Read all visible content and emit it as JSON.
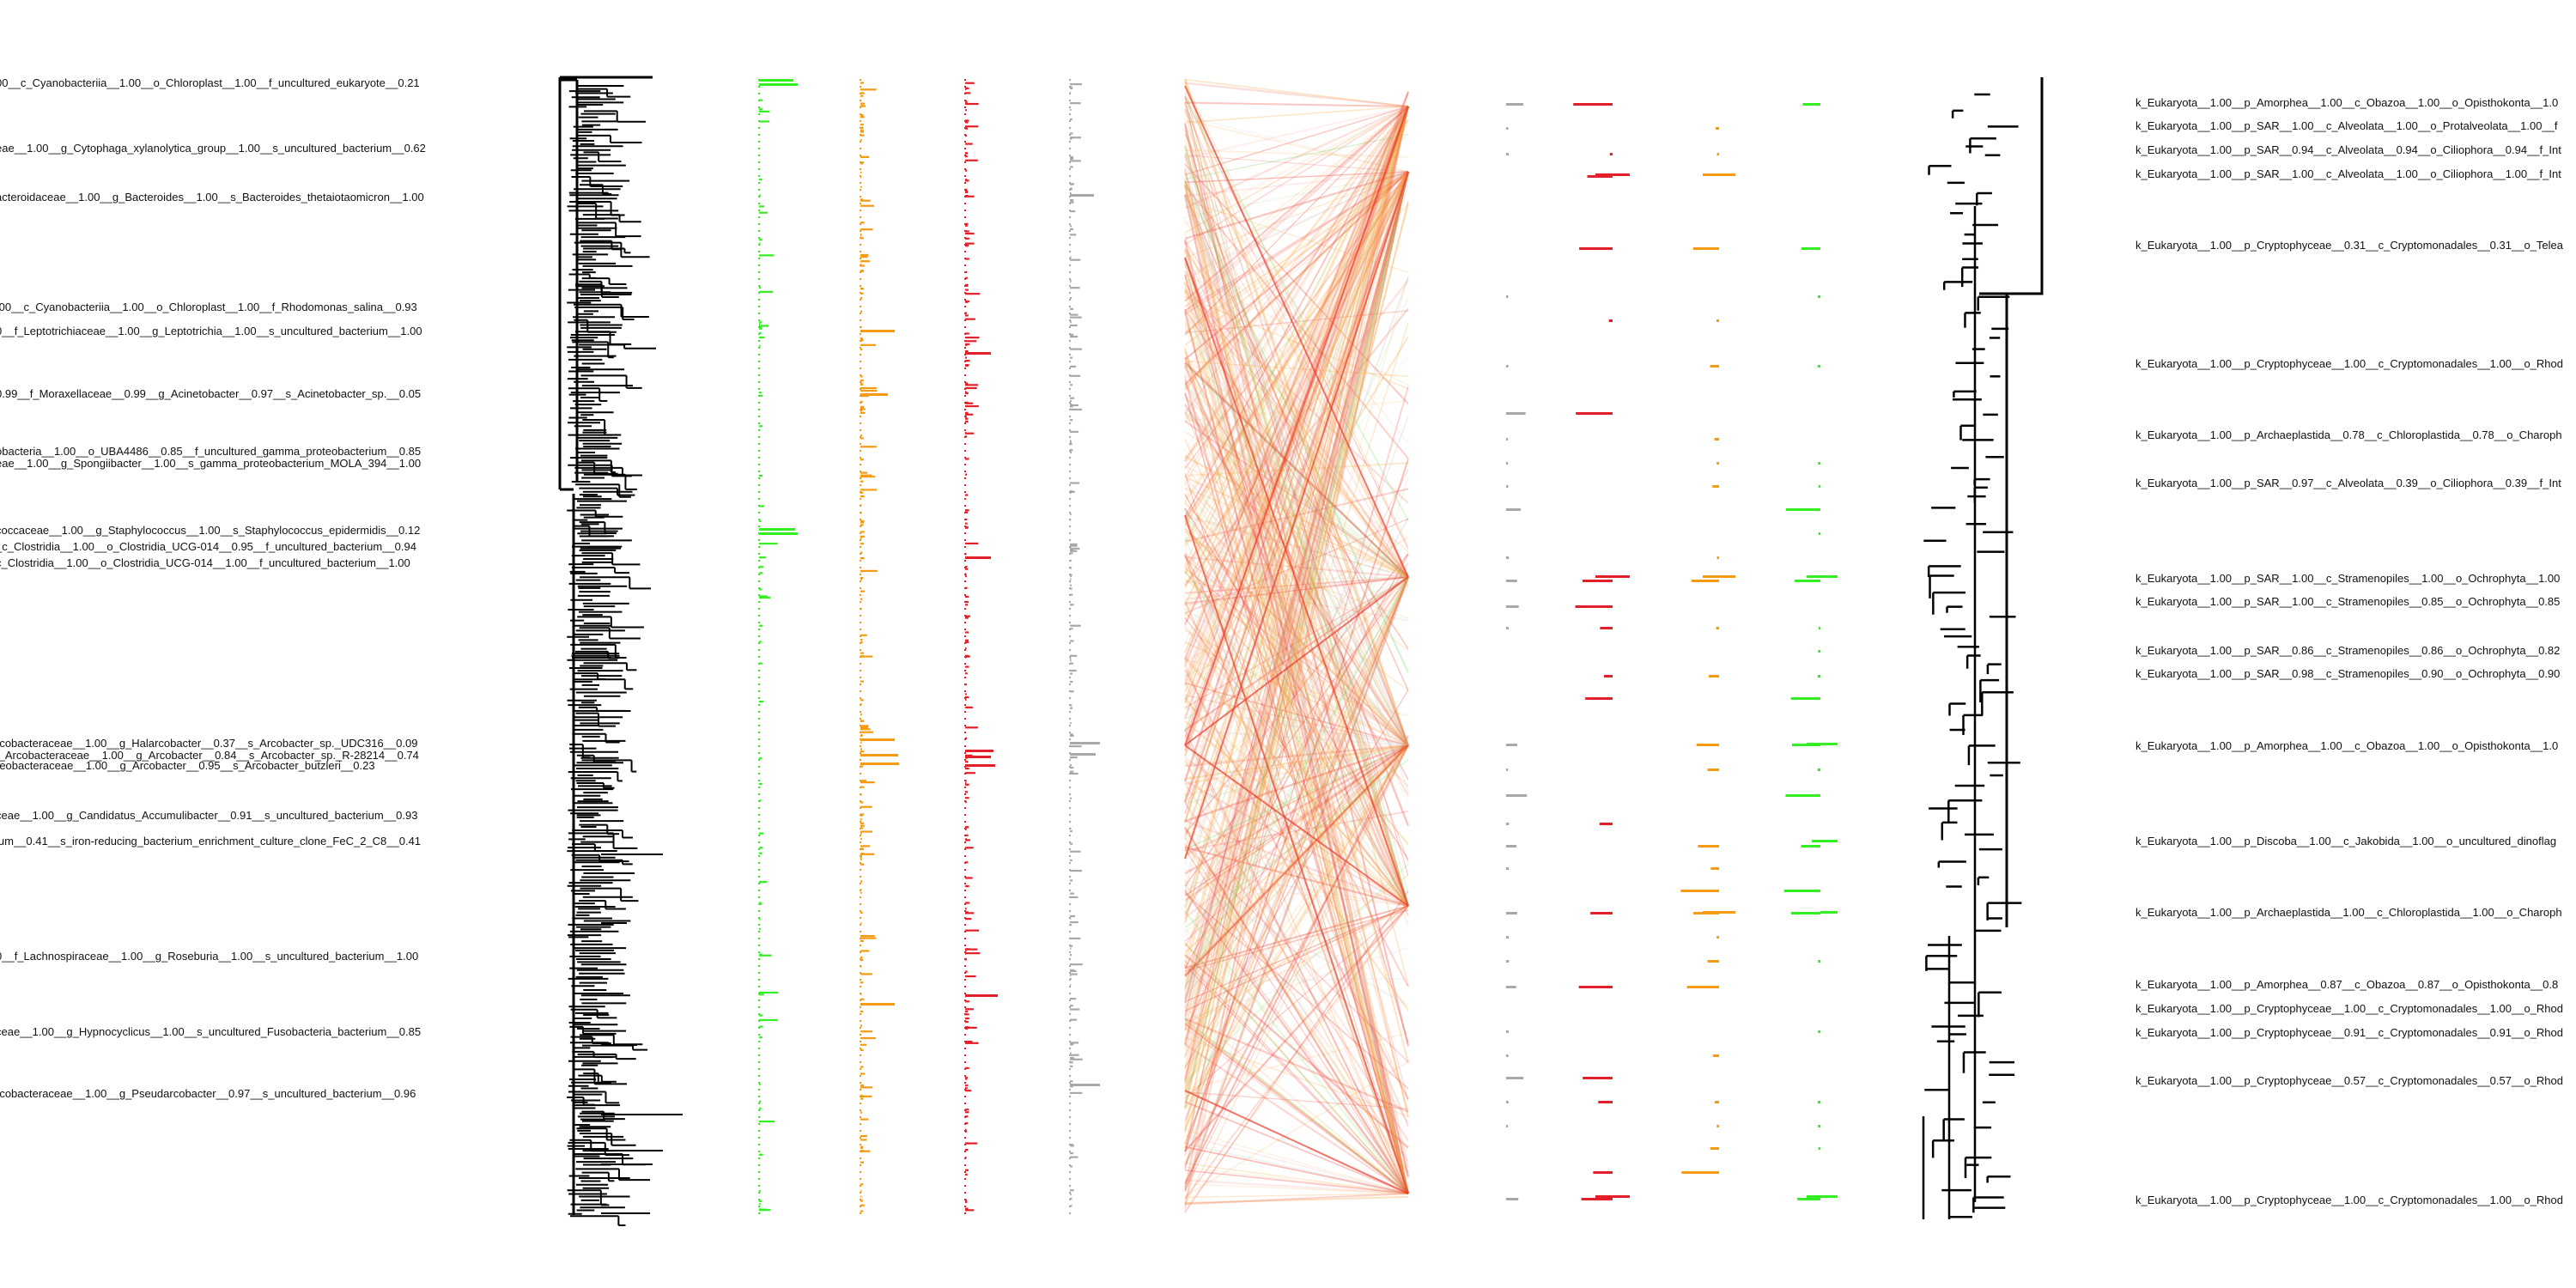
{
  "figure": {
    "background": "#ffffff",
    "colors": {
      "tree": "#000000",
      "green": "#33ee22",
      "orange": "#f59a12",
      "red": "#e3202a",
      "gray": "#a8a8a8",
      "link_red": "#ee3a2a",
      "link_orange": "#f7a640",
      "link_green": "#7dd86b",
      "link_gray": "#c8c8c8"
    },
    "left_labels": [
      "00__c_Cyanobacteriia__1.00__o_Chloroplast__1.00__f_uncultured_eukaryote__0.21",
      "eae__1.00__g_Cytophaga_xylanolytica_group__1.00__s_uncultured_bacterium__0.62",
      "acteroidaceae__1.00__g_Bacteroides__1.00__s_Bacteroides_thetaiotaomicron__1.00",
      ".00__c_Cyanobacteriia__1.00__o_Chloroplast__1.00__f_Rhodomonas_salina__0.93",
      "0__f_Leptotrichiaceae__1.00__g_Leptotrichia__1.00__s_uncultured_bacterium__1.00",
      "0.99__f_Moraxellaceae__0.99__g_Acinetobacter__0.97__s_Acinetobacter_sp.__0.05",
      "obacteria__1.00__o_UBA4486__0.85__f_uncultured_gamma_proteobacterium__0.85",
      "eae__1.00__g_Spongiibacter__1.00__s_gamma_proteobacterium_MOLA_394__1.00",
      "coccaceae__1.00__g_Staphylococcus__1.00__s_Staphylococcus_epidermidis__0.12",
      "_c_Clostridia__1.00__o_Clostridia_UCG-014__0.95__f_uncultured_bacterium__0.94",
      "c_Clostridia__1.00__o_Clostridia_UCG-014__1.00__f_uncultured_bacterium__1.00",
      "rcobacteraceae__1.00__g_Halarcobacter__0.37__s_Arcobacter_sp._UDC316__0.09",
      "f_Arcobacteraceae__1.00__g_Arcobacter__0.84__s_Arcobacter_sp._R-28214__0.74",
      "reobacteraceae__1.00__g_Arcobacter__0.95__s_Arcobacter_butzleri__0.23",
      "ceae__1.00__g_Candidatus_Accumulibacter__0.91__s_uncultured_bacterium__0.93",
      "ium__0.41__s_iron-reducing_bacterium_enrichment_culture_clone_FeC_2_C8__0.41",
      "0__f_Lachnospiraceae__1.00__g_Roseburia__1.00__s_uncultured_bacterium__1.00",
      "ceae__1.00__g_Hypnocyclicus__1.00__s_uncultured_Fusobacteria_bacterium__0.85",
      "rcobacteraceae__1.00__g_Pseudarcobacter__0.97__s_uncultured_bacterium__0.96"
    ],
    "right_labels": [
      "k_Eukaryota__1.00__p_Amorphea__1.00__c_Obazoa__1.00__o_Opisthokonta__1.0",
      "k_Eukaryota__1.00__p_SAR__1.00__c_Alveolata__1.00__o_Protalveolata__1.00__f",
      "k_Eukaryota__1.00__p_SAR__0.94__c_Alveolata__0.94__o_Ciliophora__0.94__f_Int",
      "k_Eukaryota__1.00__p_SAR__1.00__c_Alveolata__1.00__o_Ciliophora__1.00__f_Int",
      "k_Eukaryota__1.00__p_Cryptophyceae__0.31__c_Cryptomonadales__0.31__o_Telea",
      "k_Eukaryota__1.00__p_Cryptophyceae__1.00__c_Cryptomonadales__1.00__o_Rhod",
      "k_Eukaryota__1.00__p_Archaeplastida__0.78__c_Chloroplastida__0.78__o_Charoph",
      "k_Eukaryota__1.00__p_SAR__0.97__c_Alveolata__0.39__o_Ciliophora__0.39__f_Int",
      "k_Eukaryota__1.00__p_SAR__1.00__c_Stramenopiles__1.00__o_Ochrophyta__1.00",
      "k_Eukaryota__1.00__p_SAR__1.00__c_Stramenopiles__0.85__o_Ochrophyta__0.85",
      "k_Eukaryota__1.00__p_SAR__0.86__c_Stramenopiles__0.86__o_Ochrophyta__0.82",
      "k_Eukaryota__1.00__p_SAR__0.98__c_Stramenopiles__0.90__o_Ochrophyta__0.90",
      "k_Eukaryota__1.00__p_Amorphea__1.00__c_Obazoa__1.00__o_Opisthokonta__1.0",
      "k_Eukaryota__1.00__p_Discoba__1.00__c_Jakobida__1.00__o_uncultured_dinoflag",
      "k_Eukaryota__1.00__p_Archaeplastida__1.00__c_Chloroplastida__1.00__o_Charoph",
      "k_Eukaryota__1.00__p_Amorphea__0.87__c_Obazoa__0.87__o_Opisthokonta__0.8",
      "k_Eukaryota__1.00__p_Cryptophyceae__1.00__c_Cryptomonadales__1.00__o_Rhod",
      "k_Eukaryota__1.00__p_Cryptophyceae__0.91__c_Cryptomonadales__0.91__o_Rhod",
      "k_Eukaryota__1.00__p_Cryptophyceae__0.57__c_Cryptomonadales__0.57__o_Rhod",
      "k_Eukaryota__1.00__p_Cryptophyceae__1.00__c_Cryptomonadales__1.00__o_Rhod"
    ]
  }
}
